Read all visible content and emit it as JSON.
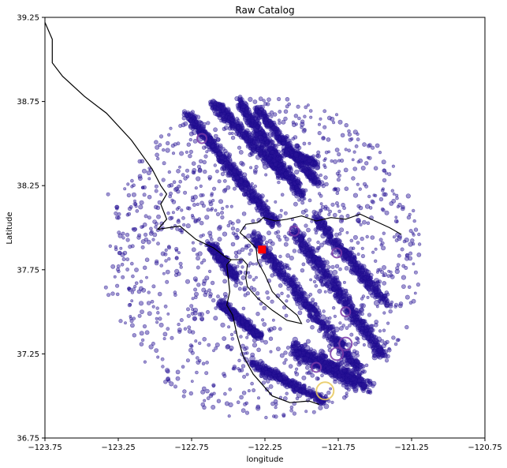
{
  "chart_data": {
    "type": "scatter",
    "title": "Raw Catalog",
    "xlabel": "longitude",
    "ylabel": "Latitude",
    "xlim": [
      -123.75,
      -120.75
    ],
    "ylim": [
      36.75,
      39.25
    ],
    "xticks": [
      -123.75,
      -123.25,
      -122.75,
      -122.25,
      -121.75,
      -121.25,
      -120.75
    ],
    "xtick_labels": [
      "−123.75",
      "−123.25",
      "−122.75",
      "−122.25",
      "−121.75",
      "−121.25",
      "−120.75"
    ],
    "yticks": [
      36.75,
      37.25,
      37.75,
      38.25,
      38.75,
      39.25
    ],
    "ytick_labels": [
      "36.75",
      "37.25",
      "37.75",
      "38.25",
      "38.75",
      "39.25"
    ],
    "grid": false,
    "legend": "none",
    "colors": {
      "event_fill": "#2a1596",
      "event_edge": "#1a0a8c",
      "large_event": "#7a3aa8",
      "largest_event": "#e8c85a",
      "marker": "#ff0000",
      "coastline": "#000000"
    },
    "marker": {
      "lon": -122.27,
      "lat": 37.87,
      "shape": "square"
    },
    "notable_events": [
      {
        "lon": -121.84,
        "lat": 37.03,
        "size": "largest"
      },
      {
        "lon": -121.76,
        "lat": 37.25,
        "size": "large"
      },
      {
        "lon": -121.7,
        "lat": 37.31,
        "size": "large"
      },
      {
        "lon": -121.7,
        "lat": 37.5,
        "size": "medium"
      },
      {
        "lon": -121.76,
        "lat": 37.85,
        "size": "medium"
      },
      {
        "lon": -122.68,
        "lat": 38.53,
        "size": "medium"
      },
      {
        "lon": -122.05,
        "lat": 37.98,
        "size": "medium"
      },
      {
        "lon": -121.9,
        "lat": 37.17,
        "size": "medium"
      }
    ],
    "seismic_bands": [
      {
        "lon0": -122.78,
        "lat0": 38.68,
        "lon1": -122.18,
        "lat1": 38.02,
        "width": 0.05,
        "density": 1.0
      },
      {
        "lon0": -122.6,
        "lat0": 38.74,
        "lon1": -122.1,
        "lat1": 38.3,
        "width": 0.05,
        "density": 0.8
      },
      {
        "lon0": -122.43,
        "lat0": 38.75,
        "lon1": -122.0,
        "lat1": 38.2,
        "width": 0.045,
        "density": 0.8
      },
      {
        "lon0": -122.3,
        "lat0": 38.7,
        "lon1": -121.88,
        "lat1": 38.25,
        "width": 0.04,
        "density": 0.6
      },
      {
        "lon0": -122.33,
        "lat0": 37.95,
        "lon1": -121.6,
        "lat1": 37.15,
        "width": 0.055,
        "density": 1.0
      },
      {
        "lon0": -122.05,
        "lat0": 37.98,
        "lon1": -121.45,
        "lat1": 37.25,
        "width": 0.06,
        "density": 1.0
      },
      {
        "lon0": -121.9,
        "lat0": 38.05,
        "lon1": -121.42,
        "lat1": 37.55,
        "width": 0.05,
        "density": 0.7
      },
      {
        "lon0": -122.55,
        "lat0": 37.55,
        "lon1": -122.28,
        "lat1": 37.35,
        "width": 0.04,
        "density": 0.6
      },
      {
        "lon0": -122.05,
        "lat0": 37.28,
        "lon1": -121.55,
        "lat1": 37.05,
        "width": 0.07,
        "density": 1.0
      },
      {
        "lon0": -122.35,
        "lat0": 37.2,
        "lon1": -121.85,
        "lat1": 36.97,
        "width": 0.04,
        "density": 0.6
      },
      {
        "lon0": -122.62,
        "lat0": 37.9,
        "lon1": -122.45,
        "lat1": 37.7,
        "width": 0.04,
        "density": 0.5
      },
      {
        "lon0": -122.1,
        "lat0": 38.45,
        "lon1": -121.9,
        "lat1": 38.38,
        "width": 0.03,
        "density": 0.4
      }
    ],
    "background_cloud": {
      "center": [
        -122.25,
        37.82
      ],
      "radius_lon": 1.07,
      "radius_lat": 0.97
    },
    "coastline": [
      [
        -123.75,
        39.22
      ],
      [
        -123.7,
        39.12
      ],
      [
        -123.7,
        38.98
      ],
      [
        -123.63,
        38.9
      ],
      [
        -123.48,
        38.78
      ],
      [
        -123.33,
        38.68
      ],
      [
        -123.16,
        38.52
      ],
      [
        -123.02,
        38.35
      ],
      [
        -122.96,
        38.25
      ],
      [
        -122.92,
        38.2
      ],
      [
        -122.96,
        38.14
      ],
      [
        -122.92,
        38.05
      ],
      [
        -122.98,
        37.99
      ],
      [
        -122.83,
        38.01
      ],
      [
        -122.72,
        37.93
      ],
      [
        -122.6,
        37.88
      ],
      [
        -122.51,
        37.82
      ],
      [
        -122.48,
        37.81
      ],
      [
        -122.51,
        37.78
      ],
      [
        -122.5,
        37.7
      ],
      [
        -122.49,
        37.62
      ],
      [
        -122.51,
        37.54
      ],
      [
        -122.47,
        37.48
      ],
      [
        -122.44,
        37.36
      ],
      [
        -122.4,
        37.24
      ],
      [
        -122.33,
        37.13
      ],
      [
        -122.2,
        37.0
      ],
      [
        -122.08,
        36.96
      ],
      [
        -121.95,
        36.97
      ],
      [
        -121.88,
        36.95
      ]
    ],
    "bay": [
      [
        -122.48,
        37.81
      ],
      [
        -122.4,
        37.81
      ],
      [
        -122.37,
        37.78
      ],
      [
        -122.38,
        37.7
      ],
      [
        -122.37,
        37.65
      ],
      [
        -122.3,
        37.58
      ],
      [
        -122.2,
        37.51
      ],
      [
        -122.1,
        37.45
      ],
      [
        -122.0,
        37.43
      ],
      [
        -122.03,
        37.48
      ],
      [
        -122.1,
        37.53
      ],
      [
        -122.2,
        37.62
      ],
      [
        -122.25,
        37.72
      ],
      [
        -122.3,
        37.8
      ],
      [
        -122.31,
        37.88
      ],
      [
        -122.38,
        37.94
      ],
      [
        -122.42,
        37.97
      ],
      [
        -122.38,
        38.02
      ],
      [
        -122.3,
        38.03
      ],
      [
        -122.26,
        38.06
      ],
      [
        -122.18,
        38.04
      ],
      [
        -122.1,
        38.05
      ],
      [
        -122.0,
        38.07
      ],
      [
        -121.9,
        38.04
      ],
      [
        -121.8,
        38.06
      ],
      [
        -121.7,
        38.05
      ],
      [
        -121.6,
        38.08
      ],
      [
        -121.5,
        38.04
      ],
      [
        -121.4,
        38.0
      ],
      [
        -121.32,
        37.96
      ]
    ]
  }
}
